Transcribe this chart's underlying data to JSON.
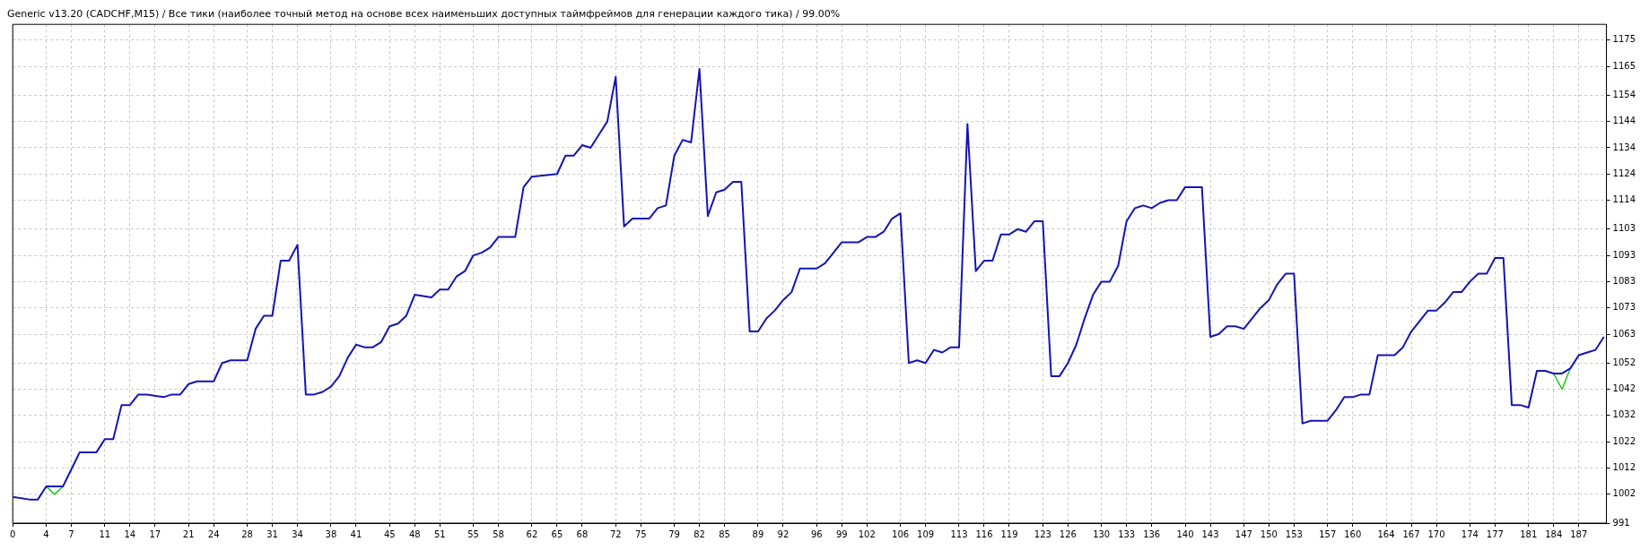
{
  "chart_data": {
    "type": "line",
    "title": "Generic v13.20 (CADCHF,M15) / Все тики (наиболее точный метод на основе всех наименьших доступных таймфреймов для генерации каждого тика) / 99.00%",
    "xlim": [
      0,
      190.3
    ],
    "ylim": [
      991,
      1181
    ],
    "xticks": [
      0,
      4,
      7,
      11,
      14,
      17,
      21,
      24,
      28,
      31,
      34,
      38,
      41,
      45,
      48,
      51,
      55,
      58,
      62,
      65,
      68,
      72,
      75,
      79,
      82,
      85,
      89,
      92,
      96,
      99,
      102,
      106,
      109,
      113,
      116,
      119,
      123,
      126,
      130,
      133,
      136,
      140,
      143,
      147,
      150,
      153,
      157,
      160,
      164,
      167,
      170,
      174,
      177,
      181,
      184,
      187
    ],
    "yticks": [
      991,
      1002,
      1012,
      1022,
      1032,
      1042,
      1052,
      1063,
      1073,
      1083,
      1093,
      1103,
      1114,
      1124,
      1134,
      1144,
      1154,
      1165,
      1175
    ],
    "grid": true,
    "legend": false,
    "line_style": "solid",
    "marker": "none",
    "series": [
      {
        "color": "#1414b4",
        "x": [
          0,
          2,
          3,
          4,
          6,
          8,
          10,
          11,
          12,
          13,
          14,
          15,
          16,
          18,
          19,
          20,
          21,
          22,
          24,
          25,
          26,
          28,
          29,
          30,
          31,
          32,
          33,
          34,
          35,
          36,
          37,
          38,
          39,
          40,
          41,
          42,
          43,
          44,
          45,
          46,
          47,
          48,
          50,
          51,
          52,
          53,
          54,
          55,
          56,
          57,
          58,
          60,
          61,
          62,
          65,
          66,
          67,
          68,
          69,
          70,
          71,
          72,
          73,
          74,
          76,
          77,
          78,
          79,
          80,
          81,
          82,
          83,
          84,
          85,
          86,
          87,
          88,
          89,
          90,
          91,
          92,
          93,
          94,
          95,
          96,
          97,
          99,
          101,
          102,
          103,
          104,
          105,
          106,
          107,
          108,
          109,
          110,
          111,
          112,
          113,
          114,
          115,
          116,
          117,
          118,
          119,
          120,
          121,
          122,
          123,
          124,
          125,
          126,
          127,
          128,
          129,
          130,
          131,
          132,
          133,
          134,
          135,
          136,
          137,
          138,
          139,
          140,
          141,
          142,
          143,
          144,
          145,
          146,
          147,
          148,
          149,
          150,
          151,
          152,
          153,
          154,
          155,
          156,
          157,
          158,
          159,
          160,
          161,
          162,
          163,
          164,
          165,
          166,
          167,
          168,
          169,
          170,
          171,
          172,
          173,
          174,
          175,
          176,
          177,
          178,
          179,
          180,
          181,
          182,
          183,
          184,
          185,
          186,
          187,
          188,
          189,
          190
        ],
        "values": [
          1001,
          1000,
          1000,
          1005,
          1005,
          1018,
          1018,
          1023,
          1023,
          1036,
          1036,
          1040,
          1040,
          1039,
          1040,
          1040,
          1044,
          1045,
          1045,
          1052,
          1053,
          1053,
          1065,
          1070,
          1070,
          1091,
          1091,
          1097,
          1040,
          1040,
          1041,
          1043,
          1047,
          1054,
          1059,
          1058,
          1058,
          1060,
          1066,
          1067,
          1070,
          1078,
          1077,
          1080,
          1080,
          1085,
          1087,
          1093,
          1094,
          1096,
          1100,
          1100,
          1119,
          1123,
          1124,
          1131,
          1131,
          1135,
          1134,
          1139,
          1144,
          1161,
          1104,
          1107,
          1107,
          1111,
          1112,
          1131,
          1137,
          1136,
          1164,
          1108,
          1117,
          1118,
          1121,
          1121,
          1064,
          1064,
          1069,
          1072,
          1076,
          1079,
          1088,
          1088,
          1088,
          1090,
          1098,
          1098,
          1100,
          1100,
          1102,
          1107,
          1109,
          1052,
          1053,
          1052,
          1057,
          1056,
          1058,
          1058,
          1143,
          1087,
          1091,
          1091,
          1101,
          1101,
          1103,
          1102,
          1106,
          1106,
          1047,
          1047,
          1052,
          1059,
          1069,
          1078,
          1083,
          1083,
          1089,
          1106,
          1111,
          1112,
          1111,
          1113,
          1114,
          1114,
          1119,
          1119,
          1119,
          1062,
          1063,
          1066,
          1066,
          1065,
          1069,
          1073,
          1076,
          1082,
          1086,
          1086,
          1029,
          1030,
          1030,
          1030,
          1034,
          1039,
          1039,
          1040,
          1040,
          1055,
          1055,
          1055,
          1058,
          1064,
          1068,
          1072,
          1072,
          1075,
          1079,
          1079,
          1083,
          1086,
          1086,
          1092,
          1092,
          1036,
          1036,
          1035,
          1049,
          1049,
          1048,
          1048,
          1050,
          1055,
          1056,
          1057,
          1062
        ]
      },
      {
        "color": "#00c000",
        "x": [
          4,
          5,
          6
        ],
        "values": [
          1005,
          1002,
          1005
        ]
      },
      {
        "color": "#00c000",
        "x": [
          184,
          185,
          186
        ],
        "values": [
          1048,
          1042,
          1050
        ]
      }
    ]
  }
}
